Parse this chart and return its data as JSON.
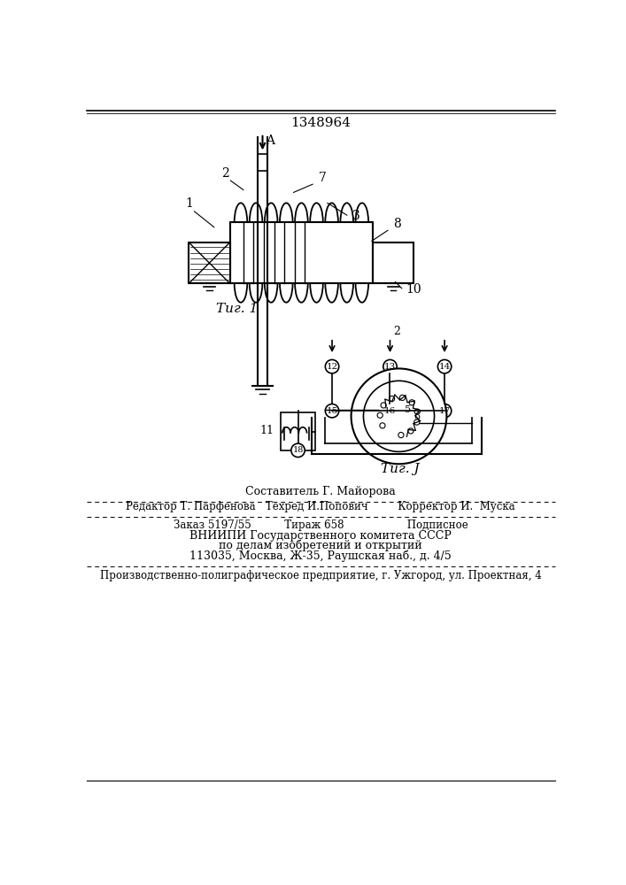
{
  "patent_number": "1348964",
  "fig1_caption": "Τиг. 1",
  "fig3_caption": "Τиг. J",
  "header_line1": "Составитель Г. Майорова",
  "header_line2": "Редактор Т. Парфенова   Техред И.Попович         Корректор И.  Муска",
  "footer_line1": "Заказ 5197/55          Тираж 658                   Подписное",
  "footer_line2": "ВНИИПИ Государственного комитета СССР",
  "footer_line3": "по делам изобретений и открытий",
  "footer_line4": "113035, Москва, Ж-35, Раушская наб., д. 4/5",
  "footer_line5": "Производственно-полиграфическое предприятие, г. Ужгород, ул. Проектная, 4",
  "bg_color": "#ffffff",
  "text_color": "#000000"
}
